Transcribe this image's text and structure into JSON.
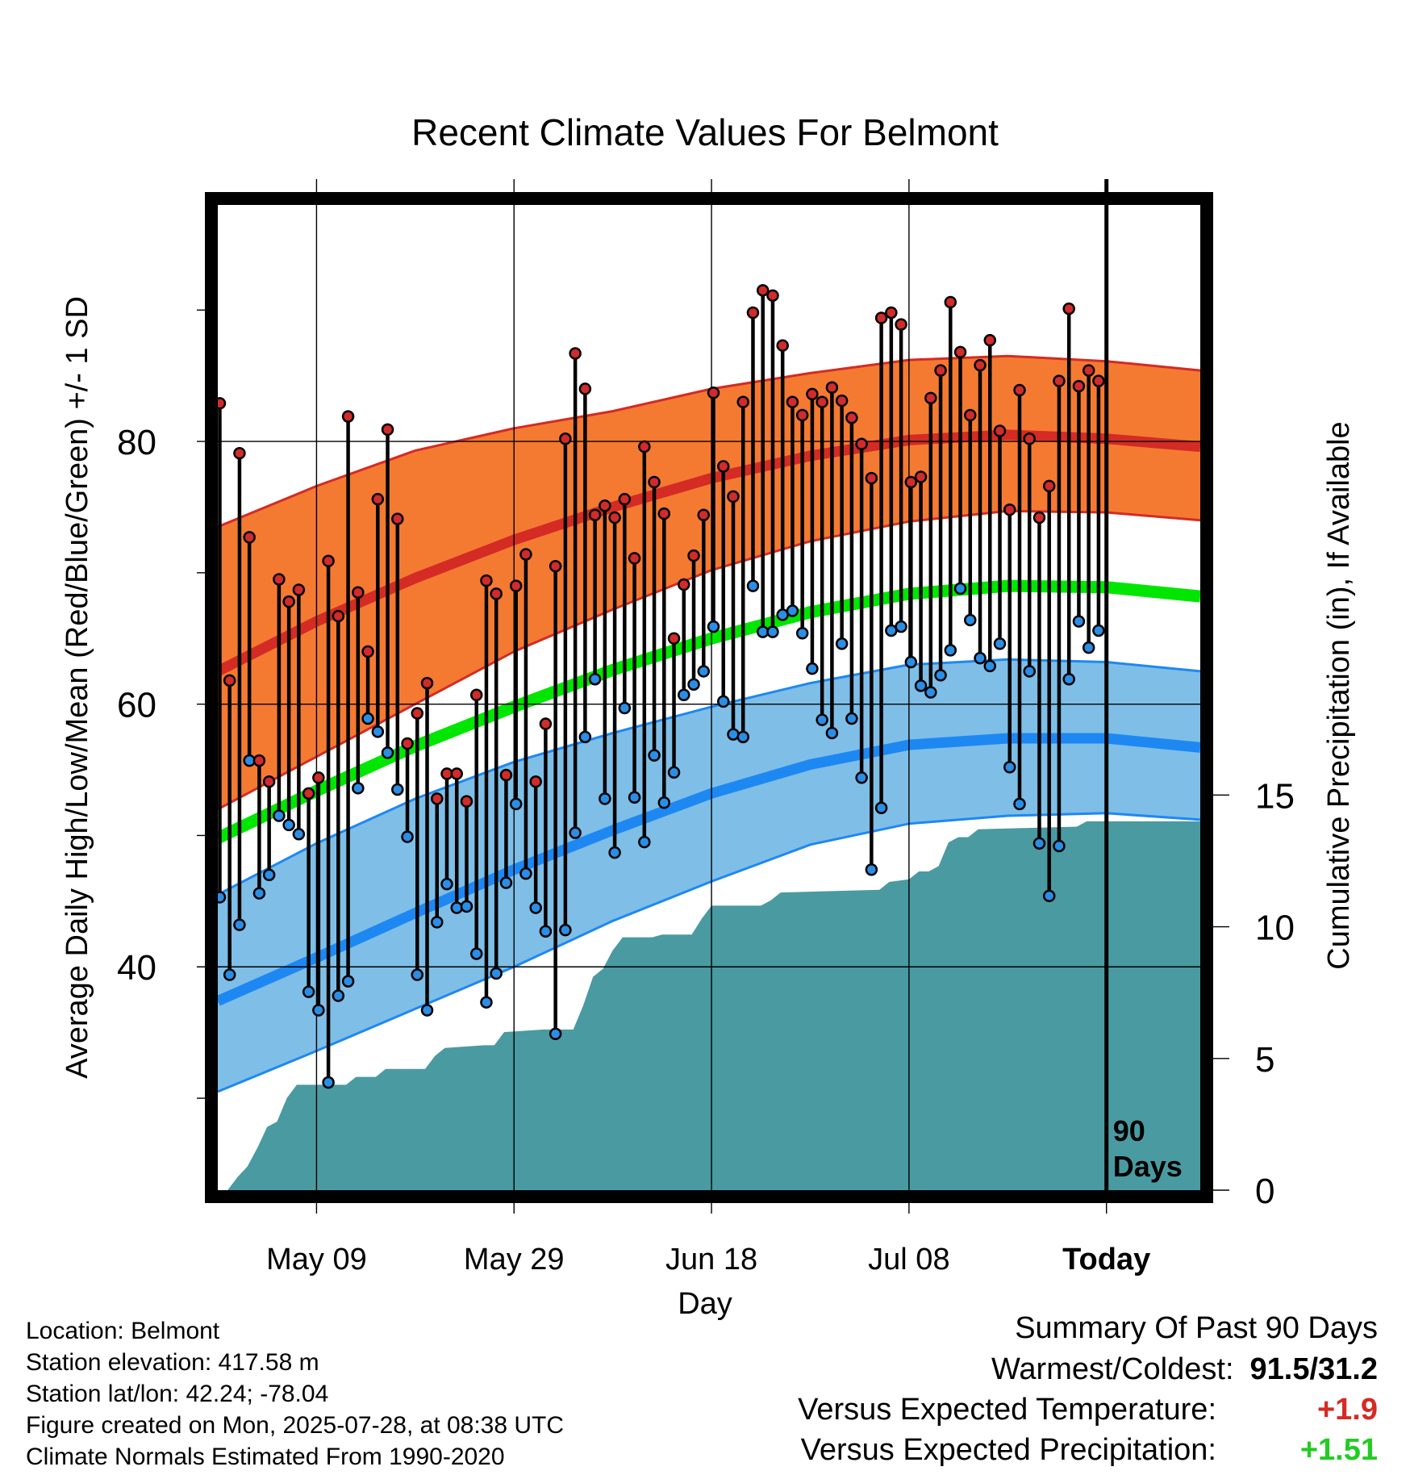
{
  "chart_data": {
    "type": "line",
    "title": "Recent Climate Values For Belmont",
    "xlabel": "Day",
    "ylabel": "Average Daily High/Low/Mean (Red/Blue/Green) +/- 1 SD",
    "y2label": "Cumulative Precipitation (in), If Available",
    "x_start_date": "2025-04-29",
    "xlim_days": [
      0,
      99.5
    ],
    "ylim": [
      23,
      98
    ],
    "y2lim": [
      0,
      37.4
    ],
    "x_ticks": [
      {
        "label": "May 09",
        "day": 10
      },
      {
        "label": "May 29",
        "day": 30
      },
      {
        "label": "Jun 18",
        "day": 50
      },
      {
        "label": "Jul 08",
        "day": 70
      },
      {
        "label": "Today",
        "day": 90
      }
    ],
    "y_ticks": [
      40,
      60,
      80
    ],
    "y_minor_ticks": [
      30,
      50,
      70,
      90
    ],
    "y2_ticks": [
      0,
      5,
      10,
      15
    ],
    "grid": true,
    "today_marker": {
      "day": 90,
      "label_line1": "90",
      "label_line2": "Days"
    },
    "daily_high": [
      82.9,
      61.8,
      79.1,
      72.7,
      55.7,
      54.1,
      69.5,
      67.8,
      68.7,
      53.2,
      54.4,
      70.9,
      66.7,
      81.9,
      68.5,
      64.0,
      75.6,
      80.9,
      74.1,
      57.0,
      59.3,
      61.6,
      52.8,
      54.7,
      54.7,
      52.6,
      60.7,
      69.4,
      68.4,
      54.6,
      69.0,
      71.4,
      54.1,
      58.5,
      70.5,
      80.2,
      86.7,
      84.0,
      74.4,
      75.1,
      74.2,
      75.6,
      71.1,
      79.6,
      76.9,
      74.5,
      65.0,
      69.1,
      71.3,
      74.4,
      83.7,
      78.1,
      75.8,
      83.0,
      89.8,
      91.5,
      91.1,
      87.3,
      83.0,
      82.0,
      83.6,
      83.0,
      84.1,
      83.1,
      81.8,
      79.8,
      77.2,
      89.4,
      89.8,
      88.9,
      76.9,
      77.3,
      83.3,
      85.4,
      90.6,
      86.8,
      82.0,
      85.8,
      87.7,
      80.8,
      74.8,
      83.9,
      80.2,
      74.2,
      76.6,
      84.6,
      90.1,
      84.2,
      85.4,
      84.6
    ],
    "daily_low": [
      45.3,
      39.4,
      43.2,
      55.7,
      45.6,
      47.0,
      51.5,
      50.8,
      50.1,
      38.1,
      36.7,
      31.2,
      37.8,
      38.9,
      53.6,
      58.9,
      57.9,
      56.3,
      53.5,
      49.9,
      39.4,
      36.7,
      43.4,
      46.3,
      44.5,
      44.6,
      41.0,
      37.3,
      39.5,
      46.4,
      52.4,
      47.1,
      44.5,
      42.7,
      34.9,
      42.8,
      50.2,
      57.5,
      61.9,
      52.8,
      48.7,
      59.7,
      52.9,
      49.5,
      56.1,
      52.5,
      54.8,
      60.7,
      61.5,
      62.5,
      65.9,
      60.2,
      57.7,
      57.5,
      69.0,
      65.5,
      65.5,
      66.8,
      67.1,
      65.4,
      62.7,
      58.8,
      57.8,
      64.6,
      58.9,
      54.4,
      47.4,
      52.1,
      65.6,
      65.9,
      63.2,
      61.4,
      60.9,
      62.2,
      64.1,
      68.8,
      66.4,
      63.5,
      62.9,
      64.6,
      55.2,
      52.4,
      62.5,
      49.4,
      45.4,
      49.2,
      61.9,
      66.3,
      64.3,
      65.6
    ],
    "normal_high_mean": [
      {
        "x": 0,
        "y": 62.5
      },
      {
        "x": 10,
        "y": 66.3
      },
      {
        "x": 20,
        "y": 69.6
      },
      {
        "x": 30,
        "y": 72.5
      },
      {
        "x": 40,
        "y": 75.0
      },
      {
        "x": 50,
        "y": 77.2
      },
      {
        "x": 60,
        "y": 78.9
      },
      {
        "x": 70,
        "y": 80.1
      },
      {
        "x": 80,
        "y": 80.5
      },
      {
        "x": 90,
        "y": 80.2
      },
      {
        "x": 99.5,
        "y": 79.6
      }
    ],
    "normal_high_upper": [
      {
        "x": 0,
        "y": 73.5
      },
      {
        "x": 10,
        "y": 76.6
      },
      {
        "x": 20,
        "y": 79.3
      },
      {
        "x": 30,
        "y": 81.0
      },
      {
        "x": 40,
        "y": 82.3
      },
      {
        "x": 50,
        "y": 84.0
      },
      {
        "x": 60,
        "y": 85.2
      },
      {
        "x": 70,
        "y": 86.2
      },
      {
        "x": 80,
        "y": 86.5
      },
      {
        "x": 90,
        "y": 86.1
      },
      {
        "x": 99.5,
        "y": 85.4
      }
    ],
    "normal_high_lower": [
      {
        "x": 0,
        "y": 52.0
      },
      {
        "x": 10,
        "y": 56.0
      },
      {
        "x": 20,
        "y": 60.0
      },
      {
        "x": 30,
        "y": 64.0
      },
      {
        "x": 40,
        "y": 67.2
      },
      {
        "x": 50,
        "y": 70.2
      },
      {
        "x": 60,
        "y": 72.4
      },
      {
        "x": 70,
        "y": 73.9
      },
      {
        "x": 80,
        "y": 74.7
      },
      {
        "x": 90,
        "y": 74.6
      },
      {
        "x": 99.5,
        "y": 74.0
      }
    ],
    "normal_mean": [
      {
        "x": 0,
        "y": 49.8
      },
      {
        "x": 10,
        "y": 53.4
      },
      {
        "x": 20,
        "y": 56.8
      },
      {
        "x": 30,
        "y": 59.8
      },
      {
        "x": 40,
        "y": 62.6
      },
      {
        "x": 50,
        "y": 65.0
      },
      {
        "x": 60,
        "y": 67.0
      },
      {
        "x": 70,
        "y": 68.4
      },
      {
        "x": 80,
        "y": 69.0
      },
      {
        "x": 90,
        "y": 68.9
      },
      {
        "x": 99.5,
        "y": 68.2
      }
    ],
    "normal_low_mean": [
      {
        "x": 0,
        "y": 37.4
      },
      {
        "x": 10,
        "y": 40.7
      },
      {
        "x": 20,
        "y": 44.1
      },
      {
        "x": 30,
        "y": 47.4
      },
      {
        "x": 40,
        "y": 50.4
      },
      {
        "x": 50,
        "y": 53.2
      },
      {
        "x": 60,
        "y": 55.4
      },
      {
        "x": 70,
        "y": 56.9
      },
      {
        "x": 80,
        "y": 57.4
      },
      {
        "x": 90,
        "y": 57.4
      },
      {
        "x": 99.5,
        "y": 56.7
      }
    ],
    "normal_low_upper": [
      {
        "x": 0,
        "y": 45.5
      },
      {
        "x": 10,
        "y": 49.4
      },
      {
        "x": 20,
        "y": 52.8
      },
      {
        "x": 30,
        "y": 55.6
      },
      {
        "x": 40,
        "y": 57.8
      },
      {
        "x": 50,
        "y": 59.8
      },
      {
        "x": 60,
        "y": 61.6
      },
      {
        "x": 70,
        "y": 63.0
      },
      {
        "x": 80,
        "y": 63.4
      },
      {
        "x": 90,
        "y": 63.2
      },
      {
        "x": 99.5,
        "y": 62.5
      }
    ],
    "normal_low_lower": [
      {
        "x": 0,
        "y": 30.5
      },
      {
        "x": 10,
        "y": 33.6
      },
      {
        "x": 20,
        "y": 36.8
      },
      {
        "x": 30,
        "y": 40.0
      },
      {
        "x": 40,
        "y": 43.5
      },
      {
        "x": 50,
        "y": 46.5
      },
      {
        "x": 60,
        "y": 49.3
      },
      {
        "x": 70,
        "y": 50.9
      },
      {
        "x": 80,
        "y": 51.5
      },
      {
        "x": 90,
        "y": 51.7
      },
      {
        "x": 99.5,
        "y": 51.2
      }
    ],
    "cumulative_precip": [
      {
        "x": 1,
        "y": 0.0
      },
      {
        "x": 2,
        "y": 0.5
      },
      {
        "x": 3,
        "y": 0.9
      },
      {
        "x": 4,
        "y": 1.6
      },
      {
        "x": 5,
        "y": 2.4
      },
      {
        "x": 6,
        "y": 2.6
      },
      {
        "x": 7,
        "y": 3.5
      },
      {
        "x": 8,
        "y": 4.0
      },
      {
        "x": 13,
        "y": 4.0
      },
      {
        "x": 14,
        "y": 4.3
      },
      {
        "x": 16,
        "y": 4.3
      },
      {
        "x": 17,
        "y": 4.6
      },
      {
        "x": 21,
        "y": 4.6
      },
      {
        "x": 22,
        "y": 5.1
      },
      {
        "x": 23,
        "y": 5.4
      },
      {
        "x": 27,
        "y": 5.5
      },
      {
        "x": 28,
        "y": 5.5
      },
      {
        "x": 29,
        "y": 6.0
      },
      {
        "x": 33,
        "y": 6.1
      },
      {
        "x": 36,
        "y": 6.1
      },
      {
        "x": 37,
        "y": 7.0
      },
      {
        "x": 38,
        "y": 8.1
      },
      {
        "x": 39,
        "y": 8.4
      },
      {
        "x": 40,
        "y": 9.1
      },
      {
        "x": 41,
        "y": 9.6
      },
      {
        "x": 44,
        "y": 9.6
      },
      {
        "x": 45,
        "y": 9.7
      },
      {
        "x": 48,
        "y": 9.7
      },
      {
        "x": 49,
        "y": 10.3
      },
      {
        "x": 50,
        "y": 10.8
      },
      {
        "x": 55,
        "y": 10.8
      },
      {
        "x": 56,
        "y": 11.0
      },
      {
        "x": 57,
        "y": 11.3
      },
      {
        "x": 67,
        "y": 11.4
      },
      {
        "x": 68,
        "y": 11.7
      },
      {
        "x": 70,
        "y": 11.8
      },
      {
        "x": 71,
        "y": 12.1
      },
      {
        "x": 72,
        "y": 12.1
      },
      {
        "x": 73,
        "y": 12.3
      },
      {
        "x": 74,
        "y": 13.2
      },
      {
        "x": 75,
        "y": 13.4
      },
      {
        "x": 76,
        "y": 13.4
      },
      {
        "x": 77,
        "y": 13.7
      },
      {
        "x": 87,
        "y": 13.8
      },
      {
        "x": 88,
        "y": 14.0
      },
      {
        "x": 99.5,
        "y": 14.0
      }
    ],
    "colors": {
      "high_band": "#f47a32",
      "high_band_edge": "#d42b25",
      "high_mean_line": "#d42b25",
      "mean_line": "#00e600",
      "low_band": "#7fbee6",
      "low_band_edge": "#1e88f2",
      "low_mean_line": "#1e88f2",
      "precip_fill": "#4a9aa1",
      "high_dot": "#d22b2b",
      "low_dot": "#2a8ee6",
      "frame": "#000000"
    }
  },
  "info": {
    "location": "Location: Belmont",
    "elevation": "Station elevation: 417.58 m",
    "latlon": "Station lat/lon: 42.24; -78.04",
    "created": "Figure created on Mon, 2025-07-28, at 08:38 UTC",
    "normals": "Climate Normals Estimated From 1990-2020"
  },
  "summary": {
    "title": "Summary Of Past 90 Days",
    "warm_cold_label": "Warmest/Coldest:",
    "warm_cold_value": "91.5/31.2",
    "temp_label": "Versus Expected Temperature:",
    "temp_value": "+1.9",
    "temp_color": "#d42b25",
    "precip_label": "Versus Expected Precipitation:",
    "precip_value": "+1.51",
    "precip_color": "#22cc22"
  }
}
